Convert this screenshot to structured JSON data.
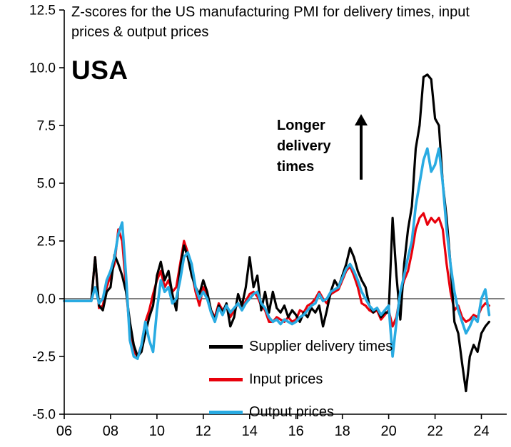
{
  "header": {
    "title": "Z-scores for the US manufacturing PMI for delivery times, input prices & output prices",
    "country_label": "USA"
  },
  "annotation": {
    "text": "Longer\ndelivery\ntimes"
  },
  "chart_data": {
    "type": "line",
    "title": "Z-scores for the US manufacturing PMI for delivery times, input prices & output prices",
    "xlabel": "",
    "ylabel": "",
    "grid": false,
    "legend_position": "inside-bottom",
    "xlim": [
      2006,
      2025
    ],
    "ylim": [
      -5,
      12.5
    ],
    "x_start": 2006.0,
    "x_step": 0.16667,
    "yticks": [
      12.5,
      10.0,
      7.5,
      5.0,
      2.5,
      0.0,
      -2.5,
      -5.0
    ],
    "ytick_labels": [
      "12.5",
      "10.0",
      "7.5",
      "5.0",
      "2.5",
      "0.0",
      "-2.5",
      "-5.0"
    ],
    "xticks": [
      2006,
      2008,
      2010,
      2012,
      2014,
      2016,
      2018,
      2020,
      2022,
      2024
    ],
    "xtick_labels": [
      "06",
      "08",
      "10",
      "12",
      "14",
      "16",
      "18",
      "20",
      "22",
      "24"
    ],
    "series": [
      {
        "name": "Supplier delivery times",
        "color": "#000000",
        "width": 3.2,
        "values": [
          -0.1,
          -0.1,
          -0.1,
          -0.1,
          -0.1,
          -0.1,
          -0.1,
          -0.1,
          1.8,
          -0.3,
          -0.5,
          0.3,
          0.5,
          1.9,
          1.5,
          1.0,
          0.3,
          -1.0,
          -2.0,
          -2.5,
          -2.3,
          -1.5,
          -0.8,
          -0.3,
          1.0,
          1.6,
          0.8,
          1.2,
          0.2,
          -0.5,
          1.3,
          2.3,
          1.8,
          1.0,
          0.5,
          0.2,
          0.8,
          0.3,
          -0.5,
          -0.9,
          -0.3,
          -0.6,
          -0.2,
          -1.2,
          -0.8,
          0.2,
          -0.3,
          0.5,
          1.8,
          0.5,
          1.0,
          -0.5,
          0.3,
          -0.6,
          0.3,
          -0.4,
          -0.6,
          -0.3,
          -0.8,
          -0.5,
          -0.7,
          -1.0,
          -0.6,
          -0.8,
          -0.4,
          -0.6,
          -0.3,
          -1.2,
          -0.5,
          0.3,
          0.8,
          0.5,
          1.0,
          1.5,
          2.2,
          1.8,
          1.2,
          0.8,
          0.5,
          -0.3,
          -0.6,
          -0.4,
          -0.8,
          -0.6,
          -0.6,
          3.5,
          1.0,
          -0.9,
          1.5,
          3.0,
          4.0,
          6.5,
          7.5,
          9.6,
          9.7,
          9.5,
          7.8,
          7.5,
          5.0,
          3.5,
          1.5,
          -1.0,
          -1.5,
          -2.8,
          -4.0,
          -2.5,
          -2.0,
          -2.3,
          -1.5,
          -1.2,
          -1.0
        ]
      },
      {
        "name": "Input prices",
        "color": "#e8000b",
        "width": 3.2,
        "values": [
          -0.1,
          -0.1,
          -0.1,
          -0.1,
          -0.1,
          -0.1,
          -0.1,
          -0.1,
          1.8,
          -0.4,
          -0.3,
          0.5,
          1.0,
          1.5,
          3.0,
          2.5,
          0.5,
          -1.5,
          -2.3,
          -2.5,
          -2.0,
          -1.0,
          -0.5,
          0.2,
          0.8,
          1.2,
          0.5,
          0.8,
          0.3,
          0.5,
          1.5,
          2.5,
          2.0,
          1.2,
          0.3,
          -0.3,
          0.5,
          0.2,
          -0.5,
          -0.8,
          -0.2,
          -0.5,
          -0.3,
          -0.8,
          -0.5,
          -0.2,
          -0.4,
          -0.1,
          0.2,
          0.3,
          0.1,
          -0.3,
          -0.5,
          -1.0,
          -1.0,
          -0.8,
          -0.9,
          -1.0,
          -0.8,
          -1.0,
          -0.9,
          -0.5,
          -0.6,
          -0.3,
          -0.2,
          0.0,
          0.3,
          0.0,
          -0.2,
          0.2,
          0.3,
          0.4,
          0.8,
          1.2,
          1.4,
          1.0,
          0.5,
          -0.2,
          -0.3,
          -0.5,
          -0.6,
          -0.5,
          -0.9,
          -0.7,
          -0.5,
          -1.2,
          -0.8,
          0.2,
          0.8,
          1.2,
          2.0,
          3.0,
          3.5,
          3.7,
          3.2,
          3.5,
          3.3,
          3.5,
          3.0,
          1.5,
          0.3,
          -0.5,
          -0.3,
          -0.8,
          -1.0,
          -0.9,
          -0.7,
          -0.8,
          -0.4,
          -0.2,
          -0.3
        ]
      },
      {
        "name": "Output prices",
        "color": "#29abe2",
        "width": 3.6,
        "values": [
          -0.1,
          -0.1,
          -0.1,
          -0.1,
          -0.1,
          -0.1,
          -0.1,
          -0.1,
          0.5,
          -0.2,
          0.0,
          0.8,
          1.2,
          1.8,
          2.8,
          3.3,
          1.0,
          -1.8,
          -2.5,
          -2.6,
          -2.0,
          -1.0,
          -1.8,
          -2.3,
          -0.5,
          0.8,
          0.3,
          0.5,
          -0.2,
          0.0,
          0.8,
          1.8,
          2.0,
          1.5,
          0.5,
          0.0,
          0.3,
          0.0,
          -0.6,
          -1.0,
          -0.4,
          -0.7,
          -0.3,
          -0.6,
          -0.4,
          -0.2,
          -0.5,
          -0.2,
          0.0,
          0.2,
          0.3,
          -0.2,
          -0.4,
          -0.8,
          -1.0,
          -0.9,
          -1.1,
          -0.9,
          -1.0,
          -1.1,
          -1.0,
          -0.8,
          -0.7,
          -0.5,
          -0.3,
          -0.2,
          0.2,
          -0.1,
          0.0,
          0.3,
          0.4,
          0.5,
          0.9,
          1.3,
          1.5,
          1.2,
          0.8,
          0.3,
          0.0,
          -0.3,
          -0.5,
          -0.4,
          -0.7,
          -0.5,
          -0.3,
          -2.5,
          -1.0,
          0.3,
          1.0,
          1.8,
          2.5,
          4.0,
          5.0,
          6.0,
          6.5,
          5.5,
          5.8,
          6.5,
          5.0,
          3.0,
          1.5,
          0.3,
          -0.5,
          -1.0,
          -1.5,
          -1.2,
          -0.8,
          -1.0,
          0.0,
          0.4,
          -0.7
        ]
      }
    ]
  }
}
